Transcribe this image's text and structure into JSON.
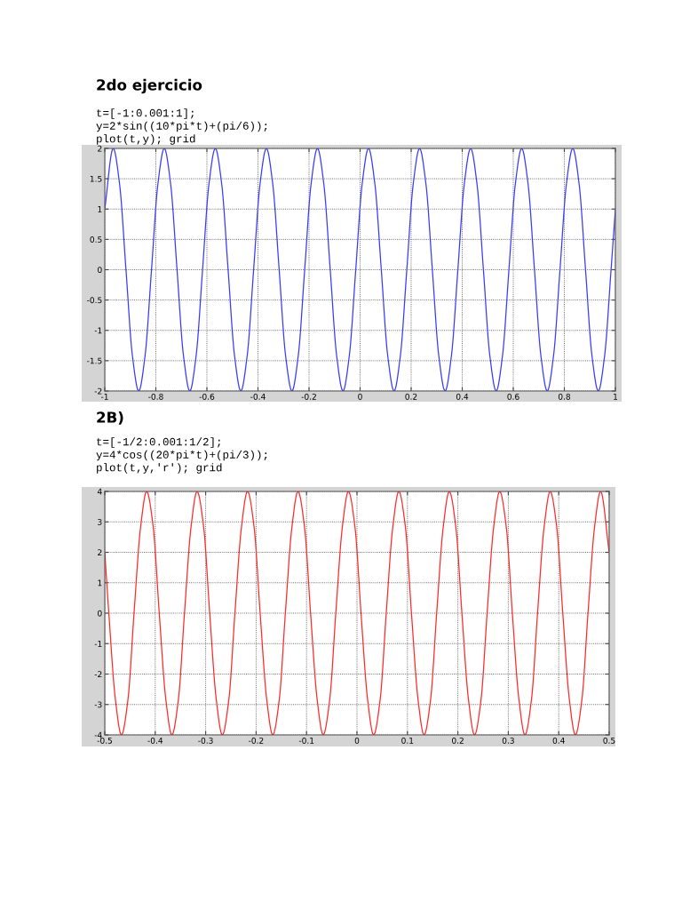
{
  "chart_data": [
    {
      "type": "line",
      "title": "2do ejercicio",
      "annotations": [
        "t=[-1:0.001:1];",
        "y=2*sin((10*pi*t)+(pi/6));",
        "plot(t,y); grid"
      ],
      "series": [
        {
          "color": "#3a3aff",
          "x": [
            -1,
            -0.967,
            -0.942,
            -0.917,
            -0.892,
            -0.867,
            -0.842,
            -0.817,
            -0.792,
            -0.767,
            -0.742,
            -0.717,
            -0.692,
            -0.667,
            -0.642,
            -0.617,
            -0.592,
            -0.567,
            -0.542,
            -0.517,
            -0.492,
            -0.467,
            -0.442,
            -0.417,
            -0.392,
            -0.367,
            -0.342,
            -0.317,
            -0.292,
            -0.267,
            -0.242,
            -0.217,
            -0.192,
            -0.167,
            -0.142,
            -0.117,
            -0.092,
            -0.067,
            -0.042,
            -0.017,
            0.008,
            0.033,
            0.058,
            0.083,
            0.108,
            0.133,
            0.158,
            0.183,
            0.208,
            0.233,
            0.258,
            0.283,
            0.308,
            0.333,
            0.358,
            0.383,
            0.408,
            0.433,
            0.458,
            0.483,
            0.508,
            0.533,
            0.558,
            0.583,
            0.608,
            0.633,
            0.658,
            0.683,
            0.708,
            0.733,
            0.758,
            0.783,
            0.808,
            0.833,
            0.858,
            0.883,
            0.908,
            0.933,
            0.958,
            0.983,
            1
          ],
          "values": [
            1,
            2,
            1.41,
            0,
            -1.41,
            -2,
            -1.41,
            0,
            1.41,
            2,
            1.41,
            0,
            -1.41,
            -2,
            -1.41,
            0,
            1.41,
            2,
            1.41,
            0,
            -1.41,
            -2,
            -1.41,
            0,
            1.41,
            2,
            1.41,
            0,
            -1.41,
            -2,
            -1.41,
            0,
            1.41,
            2,
            1.41,
            0,
            -1.41,
            -2,
            -1.41,
            0,
            1.41,
            2,
            1.41,
            0,
            -1.41,
            -2,
            -1.41,
            0,
            1.41,
            2,
            1.41,
            0,
            -1.41,
            -2,
            -1.41,
            0,
            1.41,
            2,
            1.41,
            0,
            -1.41,
            -2,
            -1.41,
            0,
            1.41,
            2,
            1.41,
            0,
            -1.41,
            -2,
            -1.41,
            0,
            1.41,
            2,
            1.41,
            0,
            -1.41,
            -2,
            -1.41,
            0,
            1
          ]
        }
      ],
      "xlim": [
        -1,
        1
      ],
      "xticks": [
        -1,
        -0.8,
        -0.6,
        -0.4,
        -0.2,
        0,
        0.2,
        0.4,
        0.6,
        0.8,
        1
      ],
      "ylim": [
        -2,
        2
      ],
      "yticks": [
        -2,
        -1.5,
        -1,
        -0.5,
        0,
        0.5,
        1,
        1.5,
        2
      ],
      "grid": true,
      "line_style": "solid",
      "marker": "none"
    },
    {
      "type": "line",
      "title": "2B)",
      "annotations": [
        "t=[-1/2:0.001:1/2];",
        "y=4*cos((20*pi*t)+(pi/3));",
        "plot(t,y,'r'); grid"
      ],
      "series": [
        {
          "color": "#ff2a2a",
          "x": [
            -0.5,
            -0.492,
            -0.479,
            -0.467,
            -0.454,
            -0.442,
            -0.429,
            -0.417,
            -0.404,
            -0.392,
            -0.379,
            -0.367,
            -0.354,
            -0.342,
            -0.329,
            -0.317,
            -0.304,
            -0.292,
            -0.279,
            -0.267,
            -0.254,
            -0.242,
            -0.229,
            -0.217,
            -0.204,
            -0.192,
            -0.179,
            -0.167,
            -0.154,
            -0.142,
            -0.129,
            -0.117,
            -0.104,
            -0.092,
            -0.079,
            -0.067,
            -0.054,
            -0.042,
            -0.029,
            -0.017,
            -0.004,
            0.008,
            0.021,
            0.033,
            0.046,
            0.058,
            0.071,
            0.083,
            0.096,
            0.108,
            0.121,
            0.133,
            0.146,
            0.158,
            0.171,
            0.183,
            0.196,
            0.208,
            0.221,
            0.233,
            0.246,
            0.258,
            0.271,
            0.283,
            0.296,
            0.308,
            0.321,
            0.333,
            0.346,
            0.358,
            0.371,
            0.383,
            0.396,
            0.408,
            0.421,
            0.433,
            0.446,
            0.458,
            0.471,
            0.483,
            0.5
          ],
          "values": [
            2,
            0,
            -2.83,
            -4,
            -2.83,
            0,
            2.83,
            4,
            2.83,
            0,
            -2.83,
            -4,
            -2.83,
            0,
            2.83,
            4,
            2.83,
            0,
            -2.83,
            -4,
            -2.83,
            0,
            2.83,
            4,
            2.83,
            0,
            -2.83,
            -4,
            -2.83,
            0,
            2.83,
            4,
            2.83,
            0,
            -2.83,
            -4,
            -2.83,
            0,
            2.83,
            4,
            2.83,
            0,
            -2.83,
            -4,
            -2.83,
            0,
            2.83,
            4,
            2.83,
            0,
            -2.83,
            -4,
            -2.83,
            0,
            2.83,
            4,
            2.83,
            0,
            -2.83,
            -4,
            -2.83,
            0,
            2.83,
            4,
            2.83,
            0,
            -2.83,
            -4,
            -2.83,
            0,
            2.83,
            4,
            2.83,
            0,
            -2.83,
            -4,
            -2.83,
            0,
            2.83,
            4,
            2
          ]
        }
      ],
      "xlim": [
        -0.5,
        0.5
      ],
      "xticks": [
        -0.5,
        -0.4,
        -0.3,
        -0.2,
        -0.1,
        0,
        0.1,
        0.2,
        0.3,
        0.4,
        0.5
      ],
      "ylim": [
        -4,
        4
      ],
      "yticks": [
        -4,
        -3,
        -2,
        -1,
        0,
        1,
        2,
        3,
        4
      ],
      "grid": true,
      "line_style": "solid",
      "marker": "none"
    }
  ]
}
